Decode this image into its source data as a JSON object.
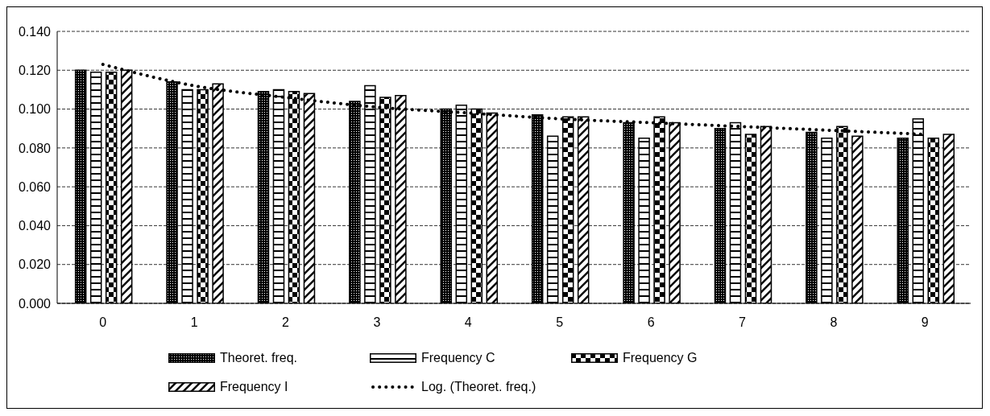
{
  "chart_data": {
    "type": "bar",
    "categories": [
      "0",
      "1",
      "2",
      "3",
      "4",
      "5",
      "6",
      "7",
      "8",
      "9"
    ],
    "series": [
      {
        "name": "Theoret. freq.",
        "color": "#000000",
        "values": [
          0.12,
          0.114,
          0.109,
          0.104,
          0.1,
          0.097,
          0.093,
          0.09,
          0.088,
          0.085
        ]
      },
      {
        "name": "Frequency C",
        "color": "#000000",
        "values": [
          0.119,
          0.11,
          0.11,
          0.112,
          0.102,
          0.086,
          0.085,
          0.093,
          0.085,
          0.095
        ]
      },
      {
        "name": "Frequency G",
        "color": "#000000",
        "values": [
          0.119,
          0.11,
          0.109,
          0.106,
          0.1,
          0.096,
          0.096,
          0.087,
          0.091,
          0.085
        ]
      },
      {
        "name": "Frequency I",
        "color": "#000000",
        "values": [
          0.12,
          0.113,
          0.108,
          0.107,
          0.098,
          0.096,
          0.093,
          0.091,
          0.086,
          0.087
        ]
      },
      {
        "name": "Log. (Theoret. freq.)",
        "type": "line",
        "color": "#000000",
        "line_style": "dotted",
        "marker": "none",
        "values": [
          0.123,
          0.112,
          0.106,
          0.101,
          0.098,
          0.095,
          0.093,
          0.091,
          0.089,
          0.087
        ]
      }
    ],
    "ylim": [
      0,
      0.14
    ],
    "yticks": [
      {
        "value": 0,
        "label": "0.000"
      },
      {
        "value": 0.02,
        "label": "0.020"
      },
      {
        "value": 0.04,
        "label": "0.040"
      },
      {
        "value": 0.06,
        "label": "0.060"
      },
      {
        "value": 0.08,
        "label": "0.080"
      },
      {
        "value": 0.1,
        "label": "0.100"
      },
      {
        "value": 0.12,
        "label": "0.120"
      },
      {
        "value": 0.14,
        "label": "0.140"
      }
    ],
    "grid": "y",
    "legend": "bottom"
  }
}
